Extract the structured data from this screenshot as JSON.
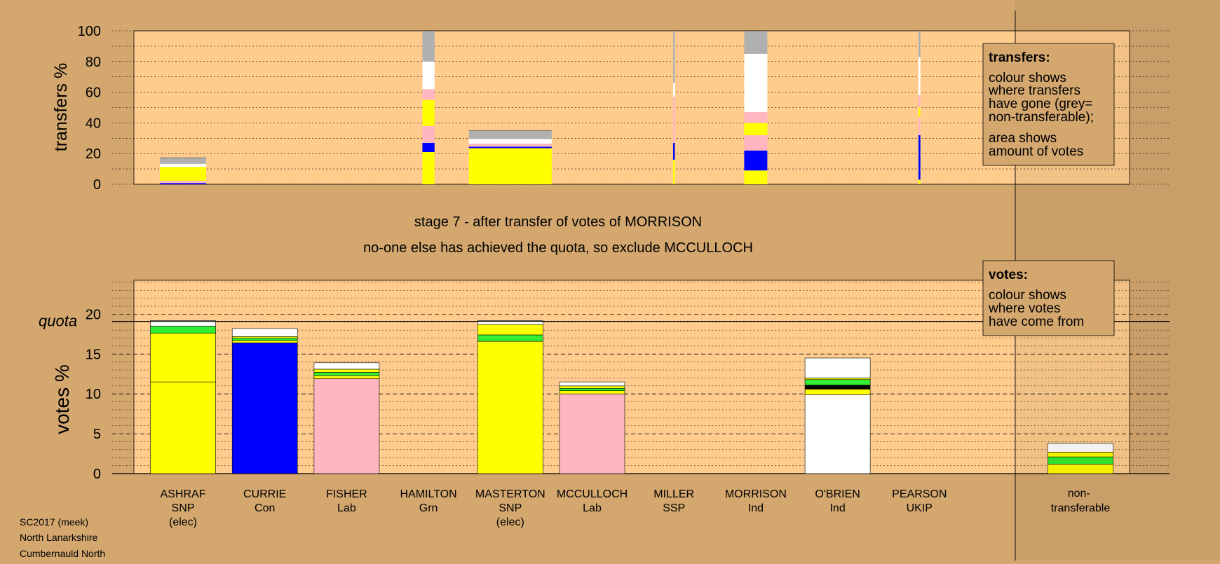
{
  "chart_data": [
    {
      "type": "bar",
      "stacked": true,
      "ylabel": "transfers %",
      "ylim": [
        0,
        100
      ],
      "yticks": [
        0,
        20,
        40,
        60,
        80,
        100
      ],
      "grid": true,
      "legend_box": {
        "title": "transfers:",
        "lines1": [
          "colour shows",
          "where transfers",
          "have gone (grey=",
          "non-transferable);"
        ],
        "lines2": [
          "area shows",
          "amount of votes"
        ]
      },
      "bars": [
        {
          "category": "ASHRAF",
          "width": 19.0,
          "segments": [
            {
              "value": 0.8,
              "color": "#0000ff"
            },
            {
              "value": 1.5,
              "color": "#ffb6c1"
            },
            {
              "value": 9.0,
              "color": "#ffff00"
            },
            {
              "value": 2.0,
              "color": "#ffffff"
            },
            {
              "value": 4.0,
              "color": "#b0b0b0"
            }
          ]
        },
        {
          "category": "CURRIE",
          "width": 0,
          "segments": []
        },
        {
          "category": "FISHER",
          "width": 0,
          "segments": []
        },
        {
          "category": "HAMILTON",
          "width": 5.0,
          "segments": [
            {
              "value": 21.0,
              "color": "#ffff00"
            },
            {
              "value": 6.0,
              "color": "#0000ff"
            },
            {
              "value": 11.0,
              "color": "#ffb6c1"
            },
            {
              "value": 17.0,
              "color": "#ffff00"
            },
            {
              "value": 7.0,
              "color": "#ffb6c1"
            },
            {
              "value": 18.0,
              "color": "#ffffff"
            },
            {
              "value": 20.0,
              "color": "#b0b0b0"
            }
          ]
        },
        {
          "category": "MASTERTON",
          "width": 34.0,
          "segments": [
            {
              "value": 23.5,
              "color": "#ffff00"
            },
            {
              "value": 1.0,
              "color": "#0000ff"
            },
            {
              "value": 2.0,
              "color": "#ffb6c1"
            },
            {
              "value": 3.0,
              "color": "#ffffff"
            },
            {
              "value": 5.5,
              "color": "#b0b0b0"
            }
          ]
        },
        {
          "category": "MCCULLOCH",
          "width": 0,
          "segments": []
        },
        {
          "category": "MILLER",
          "width": 0.7,
          "segments": [
            {
              "value": 16.0,
              "color": "#ffff00"
            },
            {
              "value": 11.0,
              "color": "#0000ff"
            },
            {
              "value": 30.0,
              "color": "#ffb6c1"
            },
            {
              "value": 9.0,
              "color": "#ffffff"
            },
            {
              "value": 34.0,
              "color": "#b0b0b0"
            }
          ]
        },
        {
          "category": "MORRISON",
          "width": 9.5,
          "segments": [
            {
              "value": 9.0,
              "color": "#ffff00"
            },
            {
              "value": 13.0,
              "color": "#0000ff"
            },
            {
              "value": 10.0,
              "color": "#ffb6c1"
            },
            {
              "value": 8.0,
              "color": "#ffff00"
            },
            {
              "value": 7.0,
              "color": "#ffb6c1"
            },
            {
              "value": 38.0,
              "color": "#ffffff"
            },
            {
              "value": 15.0,
              "color": "#b0b0b0"
            }
          ]
        },
        {
          "category": "O'BRIEN",
          "width": 0,
          "segments": []
        },
        {
          "category": "PEARSON",
          "width": 0.8,
          "segments": [
            {
              "value": 3.0,
              "color": "#ffff00"
            },
            {
              "value": 29.0,
              "color": "#0000ff"
            },
            {
              "value": 12.0,
              "color": "#ffb6c1"
            },
            {
              "value": 6.0,
              "color": "#ffff00"
            },
            {
              "value": 8.0,
              "color": "#ffb6c1"
            },
            {
              "value": 25.0,
              "color": "#ffffff"
            },
            {
              "value": 17.0,
              "color": "#b0b0b0"
            }
          ]
        }
      ]
    },
    {
      "type": "bar",
      "stacked": true,
      "ylabel": "votes %",
      "ylim": [
        0,
        24
      ],
      "yticks": [
        0,
        5,
        10,
        15,
        20
      ],
      "quota": {
        "label": "quota",
        "value": 19.1
      },
      "grid": true,
      "legend_box": {
        "title": "votes:",
        "lines1": [
          "colour shows",
          "where votes",
          "have come from"
        ]
      },
      "bars": [
        {
          "category": "ASHRAF",
          "segments": [
            {
              "value": 11.5,
              "color": "#ffff00"
            },
            {
              "value": 6.1,
              "color": "#ffff00"
            },
            {
              "value": 0.9,
              "color": "#33ee33"
            },
            {
              "value": 0.7,
              "color": "#ffffff"
            }
          ]
        },
        {
          "category": "CURRIE",
          "segments": [
            {
              "value": 16.4,
              "color": "#0000ff"
            },
            {
              "value": 0.3,
              "color": "#ffff00"
            },
            {
              "value": 0.3,
              "color": "#33ee33"
            },
            {
              "value": 0.2,
              "color": "#ffff00"
            },
            {
              "value": 1.0,
              "color": "#ffffff"
            }
          ]
        },
        {
          "category": "FISHER",
          "segments": [
            {
              "value": 11.9,
              "color": "#ffb6c1"
            },
            {
              "value": 0.4,
              "color": "#ffff00"
            },
            {
              "value": 0.4,
              "color": "#33ee33"
            },
            {
              "value": 0.4,
              "color": "#ffff00"
            },
            {
              "value": 0.8,
              "color": "#ffffff"
            }
          ]
        },
        {
          "category": "HAMILTON",
          "segments": []
        },
        {
          "category": "MASTERTON",
          "segments": [
            {
              "value": 16.6,
              "color": "#ffff00"
            },
            {
              "value": 0.8,
              "color": "#33ee33"
            },
            {
              "value": 1.3,
              "color": "#ffff00"
            },
            {
              "value": 0.5,
              "color": "#ffffff"
            }
          ]
        },
        {
          "category": "MCCULLOCH",
          "segments": [
            {
              "value": 10.0,
              "color": "#ffb6c1"
            },
            {
              "value": 0.4,
              "color": "#ffff00"
            },
            {
              "value": 0.3,
              "color": "#33ee33"
            },
            {
              "value": 0.3,
              "color": "#ffff00"
            },
            {
              "value": 0.5,
              "color": "#ffffff"
            }
          ]
        },
        {
          "category": "MILLER",
          "segments": []
        },
        {
          "category": "MORRISON",
          "segments": []
        },
        {
          "category": "O'BRIEN",
          "segments": [
            {
              "value": 9.9,
              "color": "#ffffff"
            },
            {
              "value": 0.7,
              "color": "#ffff00"
            },
            {
              "value": 0.5,
              "color": "#000000"
            },
            {
              "value": 0.7,
              "color": "#33ee33"
            },
            {
              "value": 0.2,
              "color": "#ffff00"
            },
            {
              "value": 2.5,
              "color": "#ffffff"
            }
          ]
        },
        {
          "category": "PEARSON",
          "segments": []
        }
      ],
      "nontransferable": {
        "segments": [
          {
            "value": 1.2,
            "color": "#ffff00"
          },
          {
            "value": 0.9,
            "color": "#33ee33"
          },
          {
            "value": 0.6,
            "color": "#ffff00"
          },
          {
            "value": 1.1,
            "color": "#ffffff"
          }
        ]
      }
    }
  ],
  "candidates": [
    {
      "name": "ASHRAF",
      "party": "SNP",
      "status": "(elec)"
    },
    {
      "name": "CURRIE",
      "party": "Con",
      "status": ""
    },
    {
      "name": "FISHER",
      "party": "Lab",
      "status": ""
    },
    {
      "name": "HAMILTON",
      "party": "Grn",
      "status": ""
    },
    {
      "name": "MASTERTON",
      "party": "SNP",
      "status": "(elec)"
    },
    {
      "name": "MCCULLOCH",
      "party": "Lab",
      "status": ""
    },
    {
      "name": "MILLER",
      "party": "SSP",
      "status": ""
    },
    {
      "name": "MORRISON",
      "party": "Ind",
      "status": ""
    },
    {
      "name": "O'BRIEN",
      "party": "Ind",
      "status": ""
    },
    {
      "name": "PEARSON",
      "party": "UKIP",
      "status": ""
    }
  ],
  "nontransferable_label": [
    "non-",
    "transferable"
  ],
  "stage_title": "stage 7 - after transfer of votes of MORRISON",
  "stage_subtitle": "no-one else has achieved the quota, so exclude MCCULLOCH",
  "footer": [
    "SC2017 (meek)",
    "North Lanarkshire",
    "Cumbernauld North"
  ],
  "colors": {
    "background": "#d4a76f",
    "plot": "#ffcc8e"
  }
}
